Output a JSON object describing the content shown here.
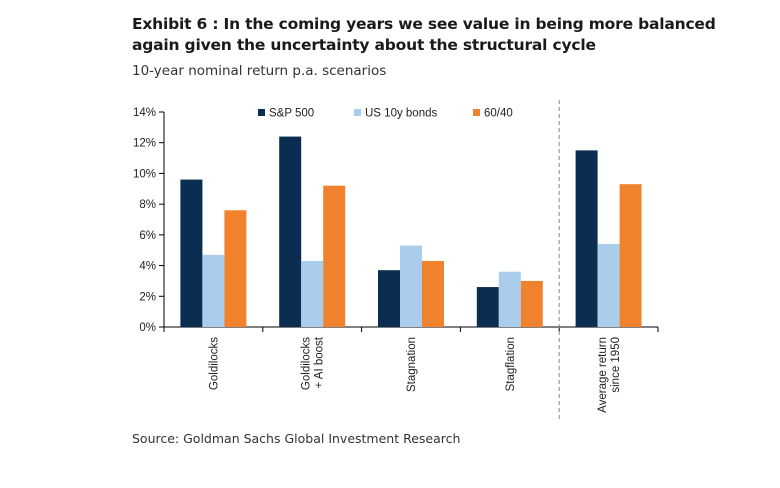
{
  "header": {
    "title": "Exhibit 6 : In the coming years we see value in being more balanced again given the uncertainty about the structural cycle",
    "subtitle": "10-year nominal return p.a. scenarios"
  },
  "footer": {
    "source": "Source: Goldman Sachs Global Investment Research"
  },
  "chart_data": {
    "type": "bar",
    "title": "",
    "xlabel": "",
    "ylabel": "",
    "ylim": [
      0,
      14
    ],
    "yticks": [
      0,
      2,
      4,
      6,
      8,
      10,
      12,
      14
    ],
    "ytick_labels": [
      "0%",
      "2%",
      "4%",
      "6%",
      "8%",
      "10%",
      "12%",
      "14%"
    ],
    "categories": [
      [
        "Goldilocks"
      ],
      [
        "Goldilocks",
        "+ AI boost"
      ],
      [
        "Stagnation"
      ],
      [
        "Stagflation"
      ],
      [
        "Average return",
        "since 1950"
      ]
    ],
    "series": [
      {
        "name": "S&P 500",
        "color": "#0b2d52",
        "values": [
          9.6,
          12.4,
          3.7,
          2.6,
          11.5
        ]
      },
      {
        "name": "US 10y bonds",
        "color": "#a9cdeb",
        "values": [
          4.7,
          4.3,
          5.3,
          3.6,
          5.4
        ]
      },
      {
        "name": "60/40",
        "color": "#f0822d",
        "values": [
          7.6,
          9.2,
          4.3,
          3.0,
          9.3
        ]
      }
    ],
    "legend_position": "top",
    "grid": false,
    "separator_before_category": 4
  }
}
